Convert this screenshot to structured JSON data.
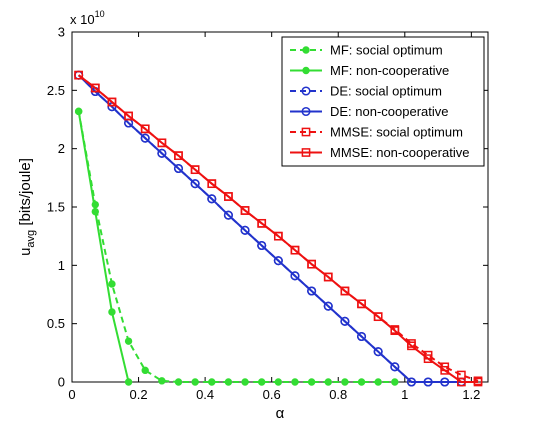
{
  "chart_data": {
    "type": "line",
    "title": "",
    "xlabel": "α",
    "ylabel_main": "u",
    "ylabel_sub": "avg",
    "ylabel_rest": " [bits/joule]",
    "y_multiplier_base": "x 10",
    "y_multiplier_exp": "10",
    "xlim": [
      0,
      1.25
    ],
    "ylim": [
      0,
      3
    ],
    "xticks": [
      0,
      0.2,
      0.4,
      0.6,
      0.8,
      1,
      1.2
    ],
    "xtick_labels": [
      "0",
      "0.2",
      "0.4",
      "0.6",
      "0.8",
      "1",
      "1.2"
    ],
    "yticks": [
      0,
      0.5,
      1,
      1.5,
      2,
      2.5,
      3
    ],
    "ytick_labels": [
      "0",
      "0.5",
      "1",
      "1.5",
      "2",
      "2.5",
      "3"
    ],
    "grid": false,
    "legend_position": "top-right",
    "series": [
      {
        "name": "MF: social optimum",
        "color": "#33dd33",
        "dash": "6,4",
        "marker": "dot",
        "x": [
          0.02,
          0.07,
          0.12,
          0.17,
          0.22,
          0.27,
          0.32,
          0.37,
          0.42,
          0.47,
          0.52,
          0.57,
          0.62,
          0.67,
          0.72,
          0.77,
          0.82,
          0.87,
          0.92,
          0.97
        ],
        "y": [
          2.32,
          1.52,
          0.84,
          0.35,
          0.1,
          0.01,
          0,
          0,
          0,
          0,
          0,
          0,
          0,
          0,
          0,
          0,
          0,
          0,
          0,
          0
        ]
      },
      {
        "name": "MF: non-cooperative",
        "color": "#33dd33",
        "dash": "",
        "marker": "dot",
        "x": [
          0.02,
          0.07,
          0.12,
          0.17
        ],
        "y": [
          2.32,
          1.46,
          0.6,
          0
        ]
      },
      {
        "name": "DE: social optimum",
        "color": "#2233cc",
        "dash": "6,4",
        "marker": "circle",
        "x": [
          0.02,
          0.07,
          0.12,
          0.17,
          0.22,
          0.27,
          0.32,
          0.37,
          0.42,
          0.47,
          0.52,
          0.57,
          0.62,
          0.67,
          0.72,
          0.77,
          0.82,
          0.87,
          0.92,
          0.97,
          1.02,
          1.07,
          1.12,
          1.17
        ],
        "y": [
          2.63,
          2.49,
          2.36,
          2.22,
          2.09,
          1.96,
          1.83,
          1.7,
          1.57,
          1.43,
          1.3,
          1.17,
          1.04,
          0.91,
          0.78,
          0.65,
          0.52,
          0.39,
          0.26,
          0.13,
          0,
          0,
          0,
          0
        ]
      },
      {
        "name": "DE: non-cooperative",
        "color": "#2233cc",
        "dash": "",
        "marker": "circle",
        "x": [
          0.02,
          0.07,
          0.12,
          0.17,
          0.22,
          0.27,
          0.32,
          0.37,
          0.42,
          0.47,
          0.52,
          0.57,
          0.62,
          0.67,
          0.72,
          0.77,
          0.82,
          0.87,
          0.92,
          0.97,
          1.02,
          1.07,
          1.12,
          1.17
        ],
        "y": [
          2.63,
          2.49,
          2.36,
          2.22,
          2.09,
          1.96,
          1.83,
          1.7,
          1.57,
          1.43,
          1.3,
          1.17,
          1.04,
          0.91,
          0.78,
          0.65,
          0.52,
          0.39,
          0.26,
          0.13,
          0,
          0,
          0,
          0
        ]
      },
      {
        "name": "MMSE: social optimum",
        "color": "#ee1111",
        "dash": "6,4",
        "marker": "square",
        "x": [
          0.02,
          0.07,
          0.12,
          0.17,
          0.22,
          0.27,
          0.32,
          0.37,
          0.42,
          0.47,
          0.52,
          0.57,
          0.62,
          0.67,
          0.72,
          0.77,
          0.82,
          0.87,
          0.92,
          0.97,
          1.02,
          1.07,
          1.12,
          1.17,
          1.22
        ],
        "y": [
          2.63,
          2.52,
          2.4,
          2.28,
          2.17,
          2.05,
          1.94,
          1.82,
          1.7,
          1.59,
          1.47,
          1.36,
          1.25,
          1.13,
          1.01,
          0.9,
          0.78,
          0.67,
          0.56,
          0.45,
          0.33,
          0.23,
          0.13,
          0.06,
          0.01
        ]
      },
      {
        "name": "MMSE: non-cooperative",
        "color": "#ee1111",
        "dash": "",
        "marker": "square",
        "x": [
          0.02,
          0.07,
          0.12,
          0.17,
          0.22,
          0.27,
          0.32,
          0.37,
          0.42,
          0.47,
          0.52,
          0.57,
          0.62,
          0.67,
          0.72,
          0.77,
          0.82,
          0.87,
          0.92,
          0.97,
          1.02,
          1.07,
          1.12,
          1.17,
          1.22
        ],
        "y": [
          2.63,
          2.52,
          2.4,
          2.28,
          2.17,
          2.05,
          1.94,
          1.82,
          1.7,
          1.59,
          1.47,
          1.36,
          1.25,
          1.13,
          1.01,
          0.9,
          0.78,
          0.67,
          0.56,
          0.44,
          0.31,
          0.2,
          0.1,
          0,
          0
        ]
      }
    ]
  }
}
